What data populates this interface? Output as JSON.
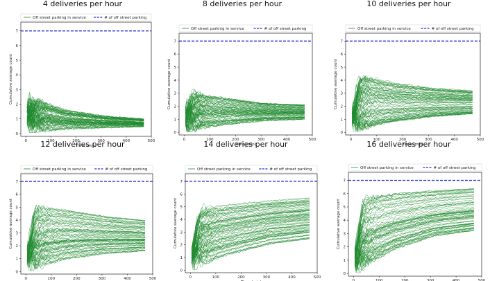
{
  "colors": {
    "series": "#1f8a2e",
    "threshold": "#1f2bd6"
  },
  "chart_data": [
    {
      "type": "line",
      "title": "4 deliveries per hour",
      "xlabel": "Time (min)",
      "ylabel": "Cumulative average count",
      "xlim": [
        -20,
        500
      ],
      "ylim": [
        -0.2,
        7.6
      ],
      "xticks": [
        0,
        100,
        200,
        300,
        400,
        500
      ],
      "yticks": [
        0,
        1,
        2,
        3,
        4,
        5,
        6,
        7
      ],
      "legend": [
        "Off street parking in service",
        "# of off street parking"
      ],
      "legend_position": "top",
      "threshold": 7,
      "series_count": 80,
      "x_end": 470,
      "band_low": [
        0.1,
        0.3,
        0.4,
        0.45
      ],
      "band_high": [
        2.5,
        1.6,
        1.2,
        1.0
      ]
    },
    {
      "type": "line",
      "title": "8 deliveries per hour",
      "xlabel": "Time (min)",
      "ylabel": "Cumulative average count",
      "xlim": [
        -20,
        500
      ],
      "ylim": [
        -0.2,
        7.6
      ],
      "xticks": [
        0,
        100,
        200,
        300,
        400,
        500
      ],
      "yticks": [
        0,
        1,
        2,
        3,
        4,
        5,
        6,
        7
      ],
      "legend": [
        "Off street parking in service",
        "# of off street parking"
      ],
      "legend_position": "top",
      "threshold": 7,
      "series_count": 80,
      "x_end": 470,
      "band_low": [
        0.2,
        0.6,
        0.9,
        1.0
      ],
      "band_high": [
        3.0,
        2.6,
        2.2,
        2.1
      ]
    },
    {
      "type": "line",
      "title": "10 deliveries per hour",
      "xlabel": "Time (min)",
      "ylabel": "Cumulative average count",
      "xlim": [
        -20,
        500
      ],
      "ylim": [
        -0.2,
        7.6
      ],
      "xticks": [
        0,
        100,
        200,
        300,
        400,
        500
      ],
      "yticks": [
        0,
        1,
        2,
        3,
        4,
        5,
        6,
        7
      ],
      "legend": [
        "Off street parking in service",
        "# of off street parking"
      ],
      "legend_position": "top",
      "threshold": 7,
      "series_count": 80,
      "x_end": 470,
      "band_low": [
        0.2,
        0.8,
        1.2,
        1.4
      ],
      "band_high": [
        4.5,
        3.8,
        3.4,
        3.2
      ]
    },
    {
      "type": "line",
      "title": "12 deliveries per hour",
      "xlabel": "Time (min)",
      "ylabel": "Cumulative average count",
      "xlim": [
        -20,
        500
      ],
      "ylim": [
        -0.2,
        7.6
      ],
      "xticks": [
        0,
        100,
        200,
        300,
        400,
        500
      ],
      "yticks": [
        0,
        1,
        2,
        3,
        4,
        5,
        6,
        7
      ],
      "legend": [
        "Off street parking in service",
        "# of off street parking"
      ],
      "legend_position": "top",
      "threshold": 7,
      "series_count": 80,
      "x_end": 470,
      "band_low": [
        0.2,
        1.0,
        1.4,
        1.6
      ],
      "band_high": [
        5.1,
        4.8,
        4.3,
        4.0
      ]
    },
    {
      "type": "line",
      "title": "14 deliveries per hour",
      "xlabel": "Time (min)",
      "ylabel": "Cumulative average count",
      "xlim": [
        -20,
        500
      ],
      "ylim": [
        -0.2,
        7.6
      ],
      "xticks": [
        0,
        100,
        200,
        300,
        400,
        500
      ],
      "yticks": [
        0,
        1,
        2,
        3,
        4,
        5,
        6,
        7
      ],
      "legend": [
        "Off street parking in service",
        "# of off street parking"
      ],
      "legend_position": "top",
      "threshold": 7,
      "series_count": 80,
      "x_end": 470,
      "band_low": [
        0.2,
        1.2,
        2.0,
        2.4
      ],
      "band_high": [
        5.0,
        5.3,
        5.6,
        5.8
      ]
    },
    {
      "type": "line",
      "title": "16 deliveries per hour",
      "xlabel": "Time (min)",
      "ylabel": "Cumulative average count",
      "xlim": [
        -20,
        500
      ],
      "ylim": [
        -0.2,
        7.6
      ],
      "xticks": [
        0,
        100,
        200,
        300,
        400,
        500
      ],
      "yticks": [
        0,
        1,
        2,
        3,
        4,
        5,
        6,
        7
      ],
      "legend": [
        "Off street parking in service",
        "# of off street parking"
      ],
      "legend_position": "top",
      "threshold": 7,
      "series_count": 80,
      "x_end": 470,
      "band_low": [
        0.2,
        1.8,
        2.8,
        3.2
      ],
      "band_high": [
        5.5,
        6.0,
        6.2,
        6.4
      ]
    }
  ]
}
